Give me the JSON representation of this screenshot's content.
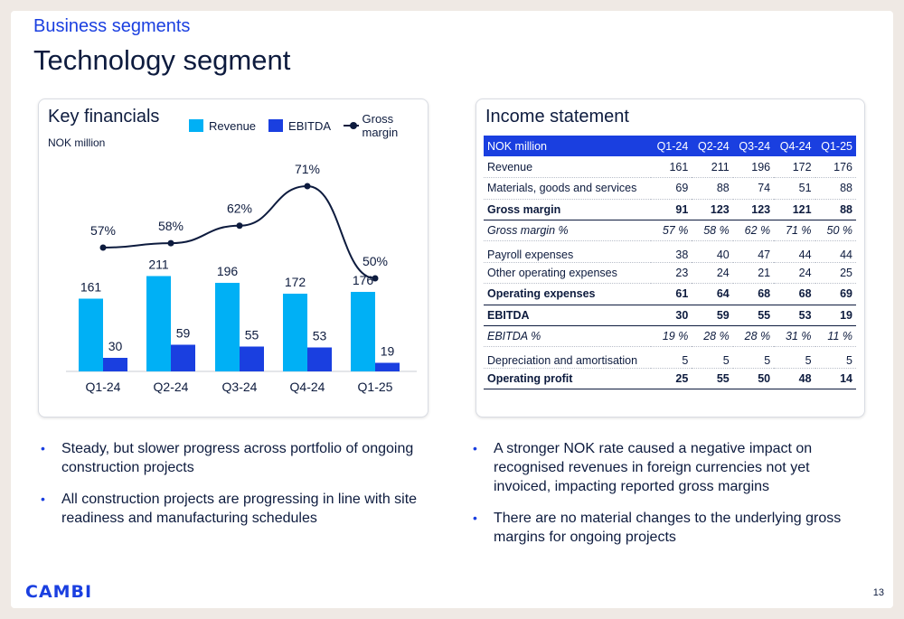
{
  "header": {
    "eyebrow": "Business segments",
    "title": "Technology segment"
  },
  "left_card": {
    "title": "Key financials",
    "unit": "NOK million",
    "legend": {
      "revenue": "Revenue",
      "ebitda": "EBITDA",
      "gross_margin": "Gross margin"
    }
  },
  "chart_data": {
    "type": "bar",
    "title": "Key financials",
    "ylabel": "NOK million",
    "categories": [
      "Q1-24",
      "Q2-24",
      "Q3-24",
      "Q4-24",
      "Q1-25"
    ],
    "series": [
      {
        "name": "Revenue",
        "type": "bar",
        "color": "#00b0f5",
        "values": [
          161,
          211,
          196,
          172,
          176
        ]
      },
      {
        "name": "EBITDA",
        "type": "bar",
        "color": "#1a3fe0",
        "values": [
          30,
          59,
          55,
          53,
          19
        ]
      },
      {
        "name": "Gross margin",
        "type": "line",
        "color": "#0d1b3e",
        "values": [
          57,
          58,
          62,
          71,
          50
        ],
        "labels": [
          "57%",
          "58%",
          "62%",
          "71%",
          "50%"
        ]
      }
    ],
    "legend_position": "top-right",
    "grid": false
  },
  "right_card": {
    "title": "Income statement",
    "columns": [
      "NOK million",
      "Q1-24",
      "Q2-24",
      "Q3-24",
      "Q4-24",
      "Q1-25"
    ],
    "rows": [
      {
        "label": "Revenue",
        "values": [
          "161",
          "211",
          "196",
          "172",
          "176"
        ],
        "style": "normal"
      },
      {
        "label": "Materials, goods and services",
        "values": [
          "69",
          "88",
          "74",
          "51",
          "88"
        ],
        "style": "normal"
      },
      {
        "label": "Gross margin",
        "values": [
          "91",
          "123",
          "123",
          "121",
          "88"
        ],
        "style": "bold"
      },
      {
        "label": "Gross margin %",
        "values": [
          "57 %",
          "58 %",
          "62 %",
          "71 %",
          "50 %"
        ],
        "style": "ital"
      },
      {
        "label": "Payroll expenses",
        "values": [
          "38",
          "40",
          "47",
          "44",
          "44"
        ],
        "style": "gap"
      },
      {
        "label": "Other operating expenses",
        "values": [
          "23",
          "24",
          "21",
          "24",
          "25"
        ],
        "style": "normal"
      },
      {
        "label": "Operating expenses",
        "values": [
          "61",
          "64",
          "68",
          "68",
          "69"
        ],
        "style": "bold"
      },
      {
        "label": "EBITDA",
        "values": [
          "30",
          "59",
          "55",
          "53",
          "19"
        ],
        "style": "bold"
      },
      {
        "label": "EBITDA %",
        "values": [
          "19 %",
          "28 %",
          "28 %",
          "31 %",
          "11 %"
        ],
        "style": "ital"
      },
      {
        "label": "Depreciation and amortisation",
        "values": [
          "5",
          "5",
          "5",
          "5",
          "5"
        ],
        "style": "gap"
      },
      {
        "label": "Operating profit",
        "values": [
          "25",
          "55",
          "50",
          "48",
          "14"
        ],
        "style": "bold"
      }
    ]
  },
  "bullets_left": [
    "Steady, but slower progress across portfolio of ongoing construction projects",
    "All construction projects are progressing in line with site readiness and manufacturing schedules"
  ],
  "bullets_right": [
    "A stronger NOK rate caused a negative impact on recognised revenues in foreign currencies not yet invoiced, impacting reported gross margins",
    "There are no material changes to the underlying gross margins for ongoing projects"
  ],
  "footer": {
    "logo": "CAMBI",
    "page_number": "13"
  }
}
